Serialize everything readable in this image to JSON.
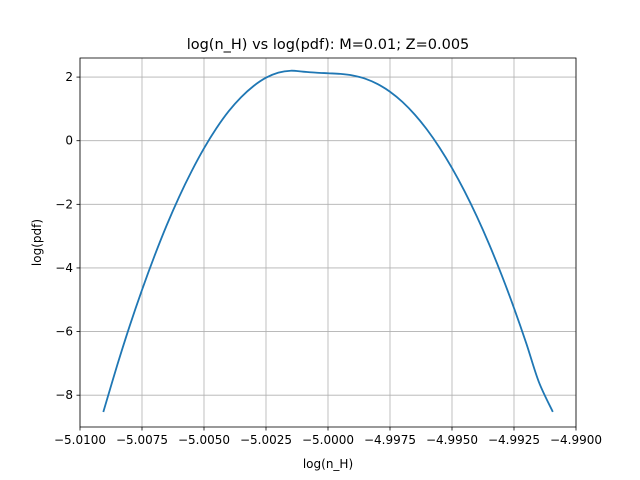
{
  "chart_data": {
    "type": "line",
    "title": "log(n_H) vs log(pdf): M=0.01; Z=0.005",
    "xlabel": "log(n_H)",
    "ylabel": "log(pdf)",
    "xlim": [
      -5.01,
      -4.99
    ],
    "ylim": [
      -9.0,
      2.6
    ],
    "grid": true,
    "x_ticks": [
      -5.01,
      -5.0075,
      -5.005,
      -5.0025,
      -5.0,
      -4.9975,
      -4.995,
      -4.9925,
      -4.99
    ],
    "x_tick_labels": [
      "−5.0100",
      "−5.0075",
      "−5.0050",
      "−5.0025",
      "−5.0000",
      "−4.9975",
      "−4.9950",
      "−4.9925",
      "−4.9900"
    ],
    "y_ticks": [
      -8,
      -6,
      -4,
      -2,
      0,
      2
    ],
    "y_tick_labels": [
      "−8",
      "−6",
      "−4",
      "−2",
      "0",
      "2"
    ],
    "series": [
      {
        "color": "#1f77b4",
        "x": [
          -5.00905,
          -5.0085,
          -5.008,
          -5.0075,
          -5.007,
          -5.0065,
          -5.006,
          -5.0055,
          -5.005,
          -5.0045,
          -5.004,
          -5.0035,
          -5.003,
          -5.0025,
          -5.002,
          -5.0015,
          -5.001,
          -5.0005,
          -5.0,
          -4.9995,
          -4.999,
          -4.9985,
          -4.998,
          -4.9975,
          -4.997,
          -4.9965,
          -4.996,
          -4.9955,
          -4.995,
          -4.9945,
          -4.994,
          -4.9935,
          -4.993,
          -4.9925,
          -4.992,
          -4.9915,
          -4.99095
        ],
        "y": [
          -8.5,
          -7.06,
          -5.83,
          -4.69,
          -3.63,
          -2.65,
          -1.76,
          -0.96,
          -0.24,
          0.39,
          0.93,
          1.37,
          1.72,
          1.98,
          2.14,
          2.2,
          2.17,
          2.14,
          2.12,
          2.1,
          2.05,
          1.95,
          1.78,
          1.54,
          1.22,
          0.82,
          0.34,
          -0.22,
          -0.86,
          -1.58,
          -2.38,
          -3.26,
          -4.22,
          -5.26,
          -6.38,
          -7.58,
          -8.5
        ]
      }
    ]
  }
}
